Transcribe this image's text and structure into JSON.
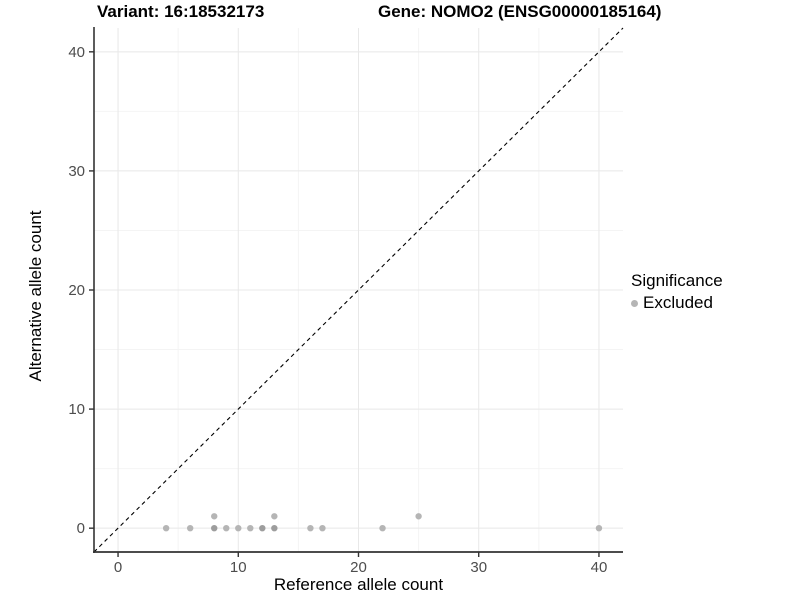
{
  "chart_data": {
    "type": "scatter",
    "titles": {
      "variant": "Variant: 16:18532173",
      "gene": "Gene: NOMO2 (ENSG00000185164)"
    },
    "xlabel": "Reference allele count",
    "ylabel": "Alternative allele count",
    "xlim": [
      -2,
      42
    ],
    "ylim": [
      -2,
      42
    ],
    "x_ticks": [
      0,
      10,
      20,
      30,
      40
    ],
    "y_ticks": [
      0,
      10,
      20,
      30,
      40
    ],
    "x_minor_ticks": [
      5,
      15,
      25,
      35
    ],
    "y_minor_ticks": [
      5,
      15,
      25,
      35
    ],
    "grid": true,
    "legend": {
      "title": "Significance",
      "position": "right",
      "items": [
        {
          "label": "Excluded",
          "color": "#b5b5b5"
        }
      ]
    },
    "identity_line": {
      "style": "dashed",
      "equation": "y = x",
      "from": [
        -2,
        -2
      ],
      "to": [
        42,
        42
      ]
    },
    "series": [
      {
        "name": "Excluded",
        "color": "#b5b5b5",
        "points": [
          {
            "x": 4,
            "y": 0
          },
          {
            "x": 6,
            "y": 0
          },
          {
            "x": 8,
            "y": 0,
            "overlap": true
          },
          {
            "x": 8,
            "y": 1
          },
          {
            "x": 9,
            "y": 0
          },
          {
            "x": 10,
            "y": 0
          },
          {
            "x": 11,
            "y": 0
          },
          {
            "x": 12,
            "y": 0,
            "overlap": true
          },
          {
            "x": 13,
            "y": 0,
            "overlap": true
          },
          {
            "x": 13,
            "y": 1
          },
          {
            "x": 16,
            "y": 0
          },
          {
            "x": 17,
            "y": 0
          },
          {
            "x": 22,
            "y": 0
          },
          {
            "x": 25,
            "y": 1
          },
          {
            "x": 40,
            "y": 0
          }
        ]
      }
    ]
  },
  "colors": {
    "point": "#b5b5b5",
    "point_overlap": "#9d9d9d",
    "grid_major": "#e8e8e8",
    "grid_minor": "#f4f4f4",
    "axis_line": "#333333",
    "dashed_line": "#000000",
    "tick_label": "#4d4d4d",
    "text": "#000000"
  }
}
